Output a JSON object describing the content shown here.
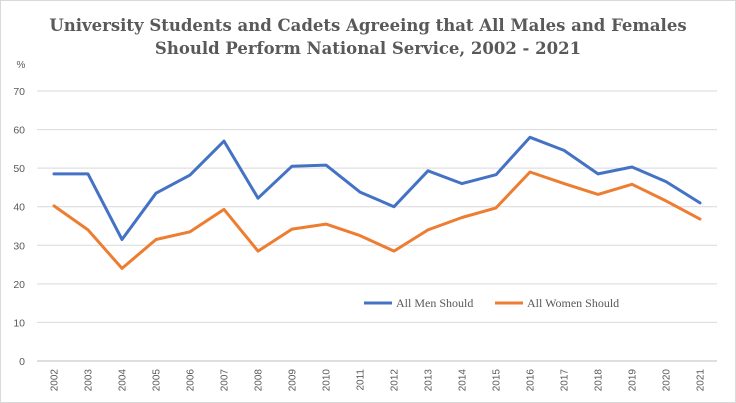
{
  "chart_data": {
    "type": "line",
    "title_lines": [
      "University Students and Cadets Agreeing that All Males and Females",
      "Should Perform National Service, 2002 - 2021"
    ],
    "ylabel": "%",
    "xlabel": "",
    "ylim": [
      0,
      70
    ],
    "yticks": [
      "0",
      "10",
      "20",
      "30",
      "40",
      "50",
      "60",
      "70"
    ],
    "grid": true,
    "legend_position": "lower-right-inside",
    "categories": [
      "2002",
      "2003",
      "2004",
      "2005",
      "2006",
      "2007",
      "2008",
      "2009",
      "2010",
      "2011",
      "2012",
      "2013",
      "2014",
      "2015",
      "2016",
      "2017",
      "2018",
      "2019",
      "2020",
      "2021"
    ],
    "series": [
      {
        "name": "All Men Should",
        "color": "#4472C4",
        "values": [
          48.5,
          48.5,
          31.5,
          43.5,
          48.2,
          57.0,
          42.2,
          50.5,
          50.8,
          43.8,
          40.0,
          49.3,
          46.0,
          48.3,
          58.0,
          54.6,
          48.5,
          50.3,
          46.5,
          41.0
        ]
      },
      {
        "name": "All Women Should",
        "color": "#ED7D31",
        "values": [
          40.2,
          34.0,
          24.0,
          31.5,
          33.5,
          39.3,
          28.5,
          34.2,
          35.5,
          32.5,
          28.5,
          34.0,
          37.2,
          39.7,
          49.0,
          46.0,
          43.2,
          45.8,
          41.5,
          36.8
        ]
      }
    ]
  }
}
